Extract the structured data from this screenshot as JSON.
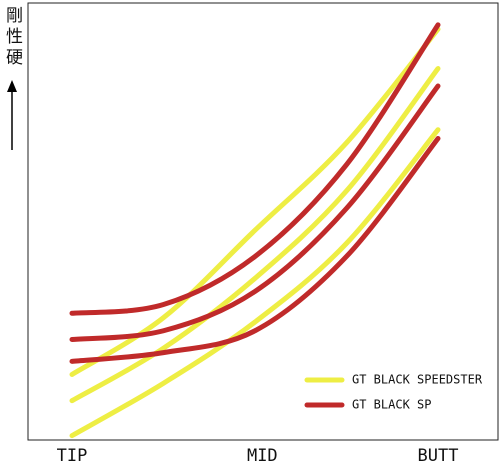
{
  "chart_data": {
    "type": "line",
    "y_label": "剛性硬",
    "x": [
      0,
      25,
      50,
      75,
      100
    ],
    "xlim": [
      0,
      100
    ],
    "xticks": [
      {
        "value": 0,
        "label": "TIP"
      },
      {
        "value": 52,
        "label": "MID"
      },
      {
        "value": 100,
        "label": "BUTT"
      }
    ],
    "ylim": [
      0,
      100
    ],
    "legend": "lower right",
    "series": [
      {
        "name": "GT BLACK SPEEDSTER",
        "color": "#eeee44",
        "lines": [
          [
            15,
            28,
            48,
            68,
            94
          ],
          [
            9,
            21,
            37,
            57,
            85
          ],
          [
            1,
            13,
            27,
            45,
            71
          ]
        ]
      },
      {
        "name": "GT BLACK SP",
        "color": "#c02a2a",
        "lines": [
          [
            29,
            31,
            42,
            63,
            95
          ],
          [
            23,
            25,
            34,
            53,
            81
          ],
          [
            18,
            20,
            25,
            42,
            69
          ]
        ]
      }
    ]
  }
}
